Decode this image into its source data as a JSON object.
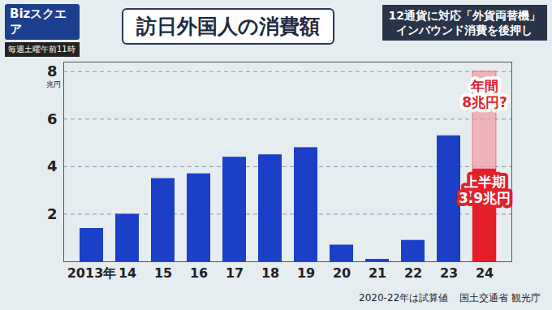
{
  "chart_data": {
    "type": "bar",
    "title": "訪日外国人の消費額",
    "subtitle": [
      "12通貨に対応「外貨両替機」",
      "インバウンド消費を後押し"
    ],
    "logo": "Bizスクエア",
    "broadcast": "毎週土曜午前11時",
    "y_label": "兆円",
    "categories": [
      "2013年",
      "14",
      "15",
      "16",
      "17",
      "18",
      "19",
      "20",
      "21",
      "22",
      "23",
      "24"
    ],
    "values": [
      1.4,
      2.0,
      3.5,
      3.7,
      4.4,
      4.5,
      4.8,
      0.7,
      0.1,
      0.9,
      5.3,
      3.9
    ],
    "colors": [
      "#1b3fc6",
      "#1b3fc6",
      "#1b3fc6",
      "#1b3fc6",
      "#1b3fc6",
      "#1b3fc6",
      "#1b3fc6",
      "#1b3fc6",
      "#1b3fc6",
      "#1b3fc6",
      "#1b3fc6",
      "#e3202a"
    ],
    "forecast": {
      "category": "24",
      "value": 8,
      "color": "#f2a0a6"
    },
    "annotations": [
      {
        "category": "24",
        "value": 8,
        "lines": [
          "年間",
          "8兆円?"
        ],
        "color": "#e3202a"
      },
      {
        "category": "24",
        "value": 3.9,
        "lines": [
          "上半期",
          "3.9兆円"
        ],
        "color": "#e3202a"
      }
    ],
    "ylim": [
      0,
      8.4
    ],
    "yticks": [
      2,
      4,
      6,
      8
    ],
    "grid": true,
    "notes": [
      "2020-22年は試算値",
      "国土交通省 観光庁"
    ]
  }
}
